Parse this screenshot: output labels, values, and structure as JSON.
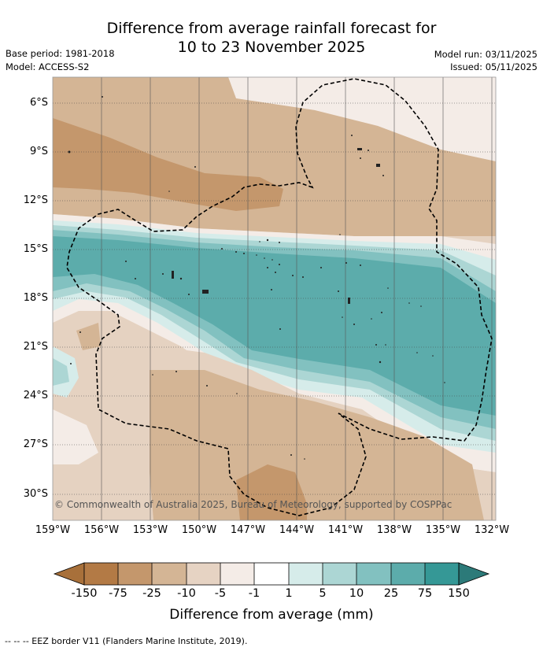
{
  "title": {
    "line1": "Difference from average rainfall forecast for",
    "line2": "10 to 23 November 2025"
  },
  "meta": {
    "base_period": "Base period: 1981-2018",
    "model": "Model: ACCESS-S2",
    "model_run": "Model run: 03/11/2025",
    "issued": "Issued: 05/11/2025"
  },
  "map": {
    "lat_labels": [
      "6°S",
      "9°S",
      "12°S",
      "15°S",
      "18°S",
      "21°S",
      "24°S",
      "27°S",
      "30°S"
    ],
    "lon_labels": [
      "159°W",
      "156°W",
      "153°W",
      "150°W",
      "147°W",
      "144°W",
      "141°W",
      "138°W",
      "135°W",
      "132°W"
    ],
    "copyright": "© Commonwealth of Australia 2025, Bureau of Meteorology, supported by COSPPac"
  },
  "legend": {
    "ticks": [
      "-150",
      "-75",
      "-25",
      "-10",
      "-5",
      "-1",
      "1",
      "5",
      "10",
      "25",
      "75",
      "150"
    ],
    "colors": [
      "#a8703a",
      "#b37a45",
      "#c4976c",
      "#d4b595",
      "#e6d3c3",
      "#f4ece7",
      "#ffffff",
      "#d6ecea",
      "#acd6d4",
      "#82c1c0",
      "#5cacab",
      "#359896",
      "#2c7a79"
    ],
    "label": "Difference from average (mm)"
  },
  "footer": "--  --  -- EEZ border V11 (Flanders Marine Institute, 2019)."
}
